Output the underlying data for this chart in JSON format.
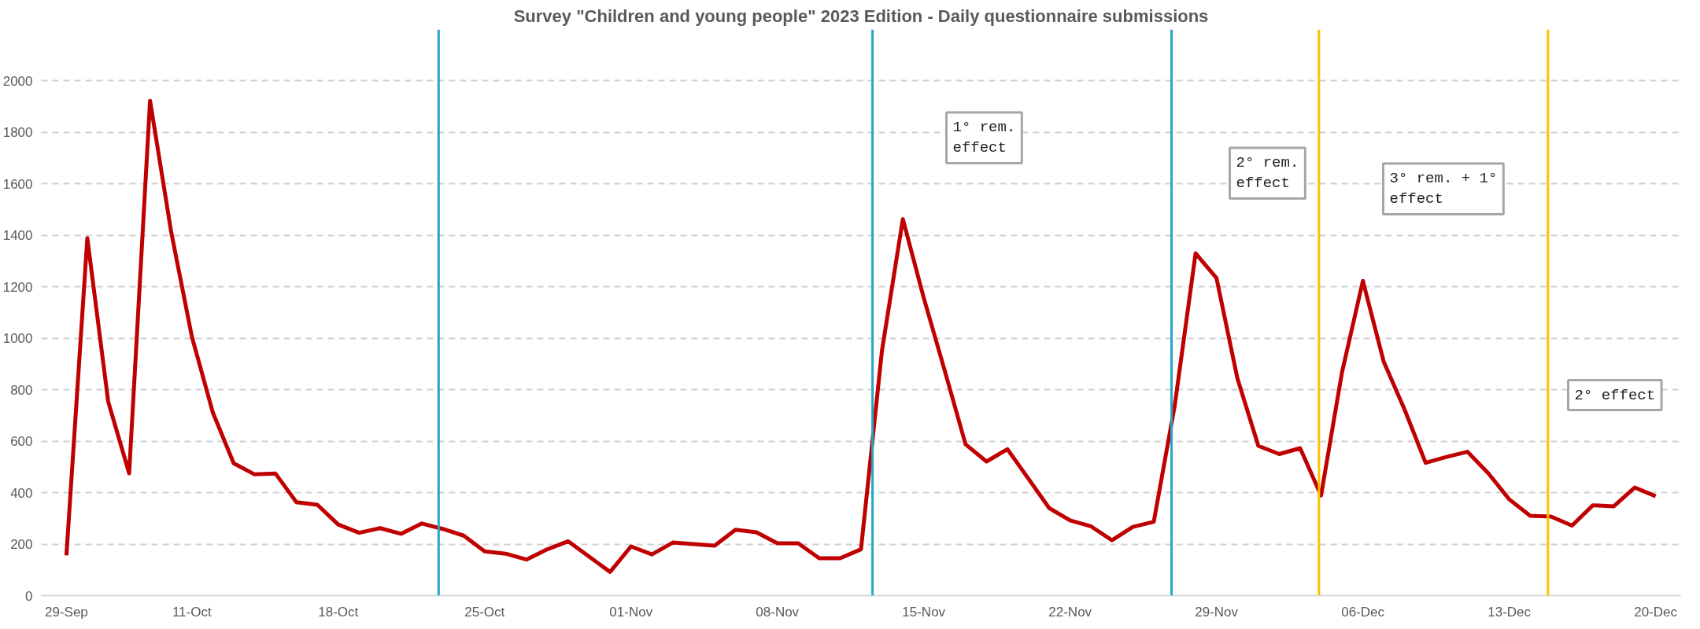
{
  "chart_data": {
    "type": "line",
    "title": "Survey \"Children and young people\" 2023 Edition - Daily questionnaire submissions",
    "categories": [
      "29-Sep",
      null,
      null,
      null,
      null,
      null,
      "11-Oct",
      null,
      null,
      null,
      null,
      null,
      null,
      "18-Oct",
      null,
      null,
      null,
      null,
      null,
      null,
      "25-Oct",
      null,
      null,
      null,
      null,
      null,
      null,
      "01-Nov",
      null,
      null,
      null,
      null,
      null,
      null,
      "08-Nov",
      null,
      null,
      null,
      null,
      null,
      null,
      "15-Nov",
      null,
      null,
      null,
      null,
      null,
      null,
      "22-Nov",
      null,
      null,
      null,
      null,
      null,
      null,
      "29-Nov",
      null,
      null,
      null,
      null,
      null,
      null,
      "06-Dec",
      null,
      null,
      null,
      null,
      null,
      null,
      "13-Dec",
      null,
      null,
      null,
      null,
      null,
      null,
      "20-Dec"
    ],
    "series": [
      {
        "color": "#c00000",
        "values": [
          156,
          1389,
          753,
          475,
          1923,
          1418,
          1006,
          712,
          514,
          471,
          474,
          363,
          353,
          276,
          244,
          262,
          240,
          280,
          259,
          233,
          172,
          163,
          140,
          180,
          211,
          151,
          92,
          191,
          160,
          206,
          200,
          194,
          256,
          246,
          203,
          203,
          145,
          145,
          180,
          951,
          1463,
          1157,
          875,
          588,
          521,
          569,
          455,
          340,
          292,
          269,
          215,
          267,
          287,
          737,
          1330,
          1234,
          844,
          582,
          550,
          573,
          389,
          867,
          1223,
          908,
          722,
          516,
          539,
          559,
          475,
          374,
          310,
          307,
          272,
          351,
          347,
          420,
          386
        ]
      }
    ],
    "ylim": [
      0,
      2200
    ],
    "yticks": [
      0,
      200,
      400,
      600,
      800,
      1000,
      1200,
      1400,
      1600,
      1800,
      2000
    ],
    "grid": "y",
    "marker": "none",
    "line_style": "solid",
    "annotations": [
      "1° rem.\neffect",
      "2° rem.\neffect",
      "3° rem. + 1°\neffect",
      "2° effect"
    ]
  }
}
